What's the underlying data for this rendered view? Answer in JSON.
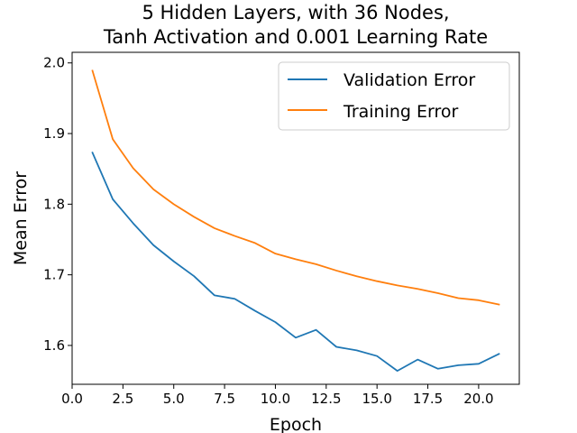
{
  "chart_data": {
    "type": "line",
    "title": "5 Hidden Layers, with 36 Nodes,",
    "subtitle": "Tanh Activation and 0.001 Learning Rate",
    "xlabel": "Epoch",
    "ylabel": "Mean Error",
    "xlim": [
      0,
      22
    ],
    "ylim": [
      1.545,
      2.015
    ],
    "xticks": [
      "0.0",
      "2.5",
      "5.0",
      "7.5",
      "10.0",
      "12.5",
      "15.0",
      "17.5",
      "20.0"
    ],
    "yticks": [
      "1.6",
      "1.7",
      "1.8",
      "1.9",
      "2.0"
    ],
    "grid": false,
    "legend_position": "top-right",
    "x": [
      1,
      2,
      3,
      4,
      5,
      6,
      7,
      8,
      9,
      10,
      11,
      12,
      13,
      14,
      15,
      16,
      17,
      18,
      19,
      20,
      21
    ],
    "series": [
      {
        "name": "Validation Error",
        "color": "#1f77b4",
        "values": [
          1.873,
          1.807,
          1.773,
          1.742,
          1.719,
          1.698,
          1.671,
          1.666,
          1.649,
          1.633,
          1.611,
          1.622,
          1.598,
          1.593,
          1.585,
          1.564,
          1.58,
          1.567,
          1.572,
          1.574,
          1.588
        ]
      },
      {
        "name": "Training Error",
        "color": "#ff7f0e",
        "values": [
          1.989,
          1.892,
          1.851,
          1.821,
          1.8,
          1.782,
          1.766,
          1.755,
          1.745,
          1.73,
          1.722,
          1.715,
          1.706,
          1.698,
          1.691,
          1.685,
          1.68,
          1.674,
          1.667,
          1.664,
          1.658
        ]
      }
    ]
  }
}
